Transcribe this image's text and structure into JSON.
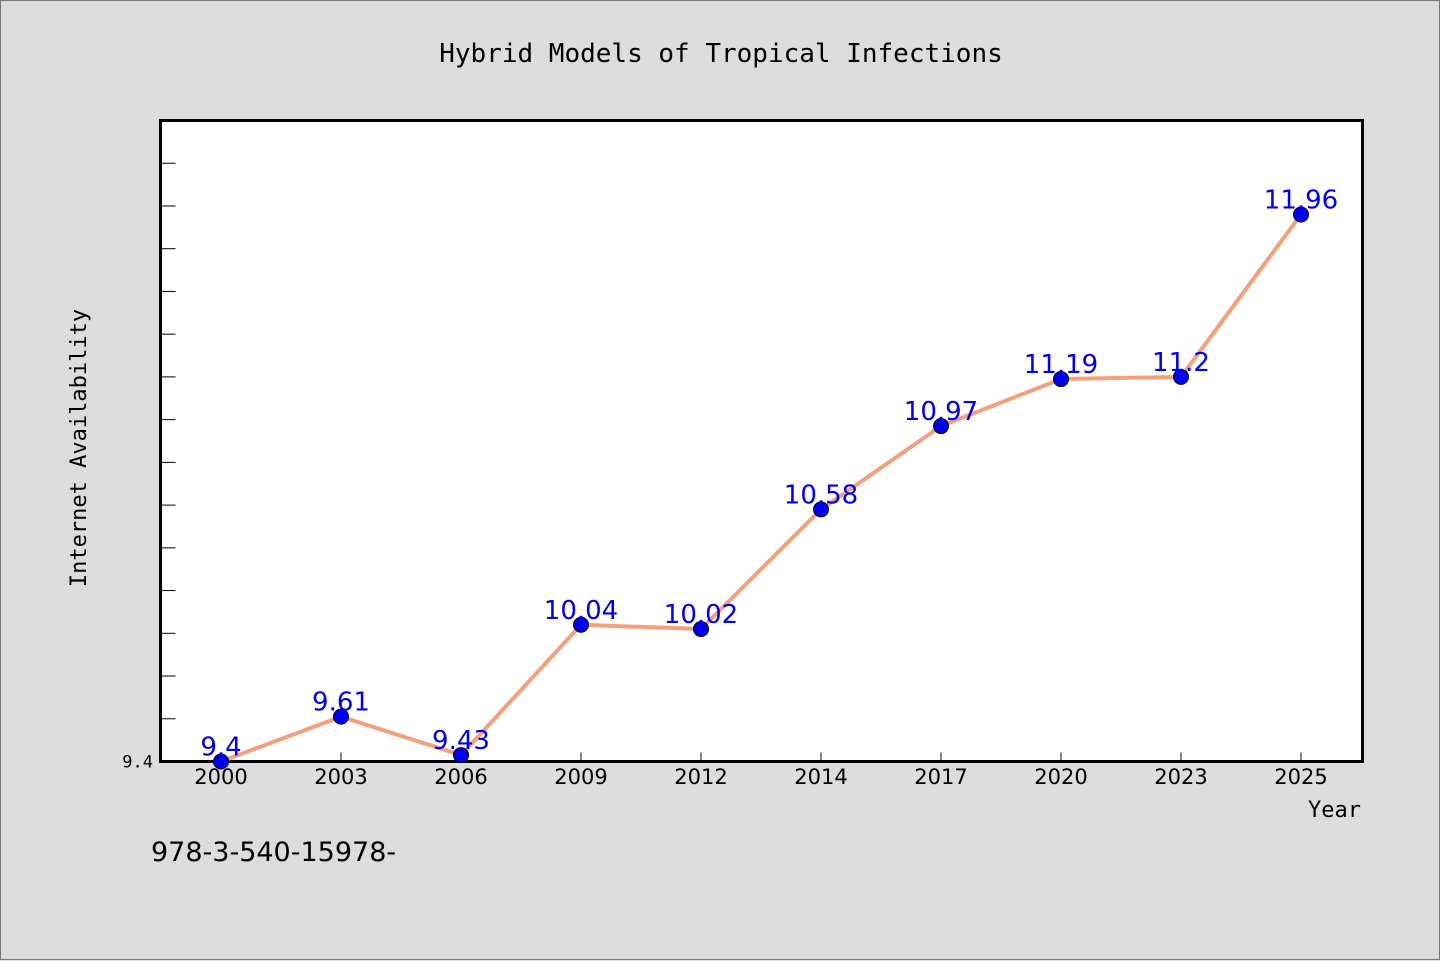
{
  "chart_data": {
    "type": "line",
    "title": "Hybrid Models of Tropical Infections",
    "xlabel": "Year",
    "ylabel": "Internet Availability",
    "categories": [
      "2000",
      "2003",
      "2006",
      "2009",
      "2012",
      "2014",
      "2017",
      "2020",
      "2023",
      "2025"
    ],
    "values": [
      9.4,
      9.61,
      9.43,
      10.04,
      10.02,
      10.58,
      10.97,
      11.19,
      11.2,
      11.96
    ],
    "data_labels": [
      "9.4",
      "9.61",
      "9.43",
      "10.04",
      "10.02",
      "10.58",
      "10.97",
      "11.19",
      "11.2",
      "11.96"
    ],
    "y_tick_labels": [
      "9.4"
    ],
    "ylim": [
      9.4,
      12.4
    ],
    "grid": false,
    "legend": "none",
    "line_color": "#f4a07c",
    "marker_color": "#0000ee",
    "label_color": "#0000ee"
  },
  "footer": {
    "isbn": "978-3-540-15978-"
  }
}
